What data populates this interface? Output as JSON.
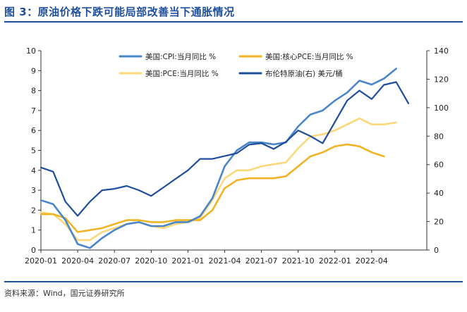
{
  "header": {
    "title": "图 3：原油价格下跌可能局部改善当下通胀情况"
  },
  "footer": {
    "source": "资料来源：Wind，国元证券研究所"
  },
  "chart_data": {
    "type": "line",
    "title": "",
    "xlabel": "",
    "ylabel": "",
    "x_ticks": [
      "2020-01",
      "2020-04",
      "2020-07",
      "2020-10",
      "2021-01",
      "2021-04",
      "2021-07",
      "2021-10",
      "2022-01",
      "2022-04"
    ],
    "ylim_left": [
      0,
      10
    ],
    "yticks_left": [
      0,
      1,
      2,
      3,
      4,
      5,
      6,
      7,
      8,
      9,
      10
    ],
    "ylim_right": [
      0,
      140
    ],
    "yticks_right": [
      0,
      20,
      40,
      60,
      80,
      100,
      120,
      140
    ],
    "grid": false,
    "legend_position": "top",
    "series": [
      {
        "name": "美国:CPI:当月同比 %",
        "axis": "left",
        "color": "#4a86c8",
        "x": [
          "2020-01",
          "2020-02",
          "2020-03",
          "2020-04",
          "2020-05",
          "2020-06",
          "2020-07",
          "2020-08",
          "2020-09",
          "2020-10",
          "2020-11",
          "2020-12",
          "2021-01",
          "2021-02",
          "2021-03",
          "2021-04",
          "2021-05",
          "2021-06",
          "2021-07",
          "2021-08",
          "2021-09",
          "2021-10",
          "2021-11",
          "2021-12",
          "2022-01",
          "2022-02",
          "2022-03",
          "2022-04",
          "2022-05",
          "2022-06"
        ],
        "values": [
          2.5,
          2.3,
          1.5,
          0.3,
          0.1,
          0.6,
          1.0,
          1.3,
          1.4,
          1.2,
          1.2,
          1.4,
          1.4,
          1.7,
          2.6,
          4.2,
          5.0,
          5.4,
          5.4,
          5.3,
          5.4,
          6.2,
          6.8,
          7.0,
          7.5,
          7.9,
          8.5,
          8.3,
          8.6,
          9.1
        ]
      },
      {
        "name": "美国:核心PCE:当月同比 %",
        "axis": "left",
        "color": "#f0b323",
        "x": [
          "2020-01",
          "2020-02",
          "2020-03",
          "2020-04",
          "2020-05",
          "2020-06",
          "2020-07",
          "2020-08",
          "2020-09",
          "2020-10",
          "2020-11",
          "2020-12",
          "2021-01",
          "2021-02",
          "2021-03",
          "2021-04",
          "2021-05",
          "2021-06",
          "2021-07",
          "2021-08",
          "2021-09",
          "2021-10",
          "2021-11",
          "2021-12",
          "2022-01",
          "2022-02",
          "2022-03",
          "2022-04",
          "2022-05"
        ],
        "values": [
          1.8,
          1.8,
          1.6,
          0.9,
          1.0,
          1.1,
          1.3,
          1.5,
          1.5,
          1.4,
          1.4,
          1.5,
          1.5,
          1.5,
          2.0,
          3.1,
          3.5,
          3.6,
          3.6,
          3.6,
          3.7,
          4.2,
          4.7,
          4.9,
          5.2,
          5.3,
          5.2,
          4.9,
          4.7
        ]
      },
      {
        "name": "美国:PCE:当月同比 %",
        "axis": "left",
        "color": "#fbd97a",
        "x": [
          "2020-01",
          "2020-02",
          "2020-03",
          "2020-04",
          "2020-05",
          "2020-06",
          "2020-07",
          "2020-08",
          "2020-09",
          "2020-10",
          "2020-11",
          "2020-12",
          "2021-01",
          "2021-02",
          "2021-03",
          "2021-04",
          "2021-05",
          "2021-06",
          "2021-07",
          "2021-08",
          "2021-09",
          "2021-10",
          "2021-11",
          "2021-12",
          "2022-01",
          "2022-02",
          "2022-03",
          "2022-04",
          "2022-05",
          "2022-06"
        ],
        "values": [
          1.9,
          1.8,
          1.3,
          0.5,
          0.5,
          0.9,
          1.1,
          1.3,
          1.4,
          1.2,
          1.1,
          1.3,
          1.4,
          1.6,
          2.5,
          3.6,
          4.0,
          4.0,
          4.2,
          4.3,
          4.4,
          5.1,
          5.7,
          5.8,
          6.0,
          6.3,
          6.6,
          6.3,
          6.3,
          6.4
        ]
      },
      {
        "name": "布伦特原油(右) 美元/桶",
        "axis": "right",
        "color": "#1f4e9c",
        "x": [
          "2020-01",
          "2020-02",
          "2020-03",
          "2020-04",
          "2020-05",
          "2020-06",
          "2020-07",
          "2020-08",
          "2020-09",
          "2020-10",
          "2020-11",
          "2020-12",
          "2021-01",
          "2021-02",
          "2021-03",
          "2021-04",
          "2021-05",
          "2021-06",
          "2021-07",
          "2021-08",
          "2021-09",
          "2021-10",
          "2021-11",
          "2021-12",
          "2022-01",
          "2022-02",
          "2022-03",
          "2022-04",
          "2022-05",
          "2022-06",
          "2022-07"
        ],
        "values": [
          58,
          55,
          34,
          24,
          34,
          42,
          43,
          45,
          42,
          38,
          44,
          50,
          56,
          64,
          64,
          66,
          68,
          74,
          75,
          71,
          76,
          84,
          80,
          75,
          90,
          105,
          112,
          106,
          116,
          118,
          103
        ]
      }
    ]
  }
}
